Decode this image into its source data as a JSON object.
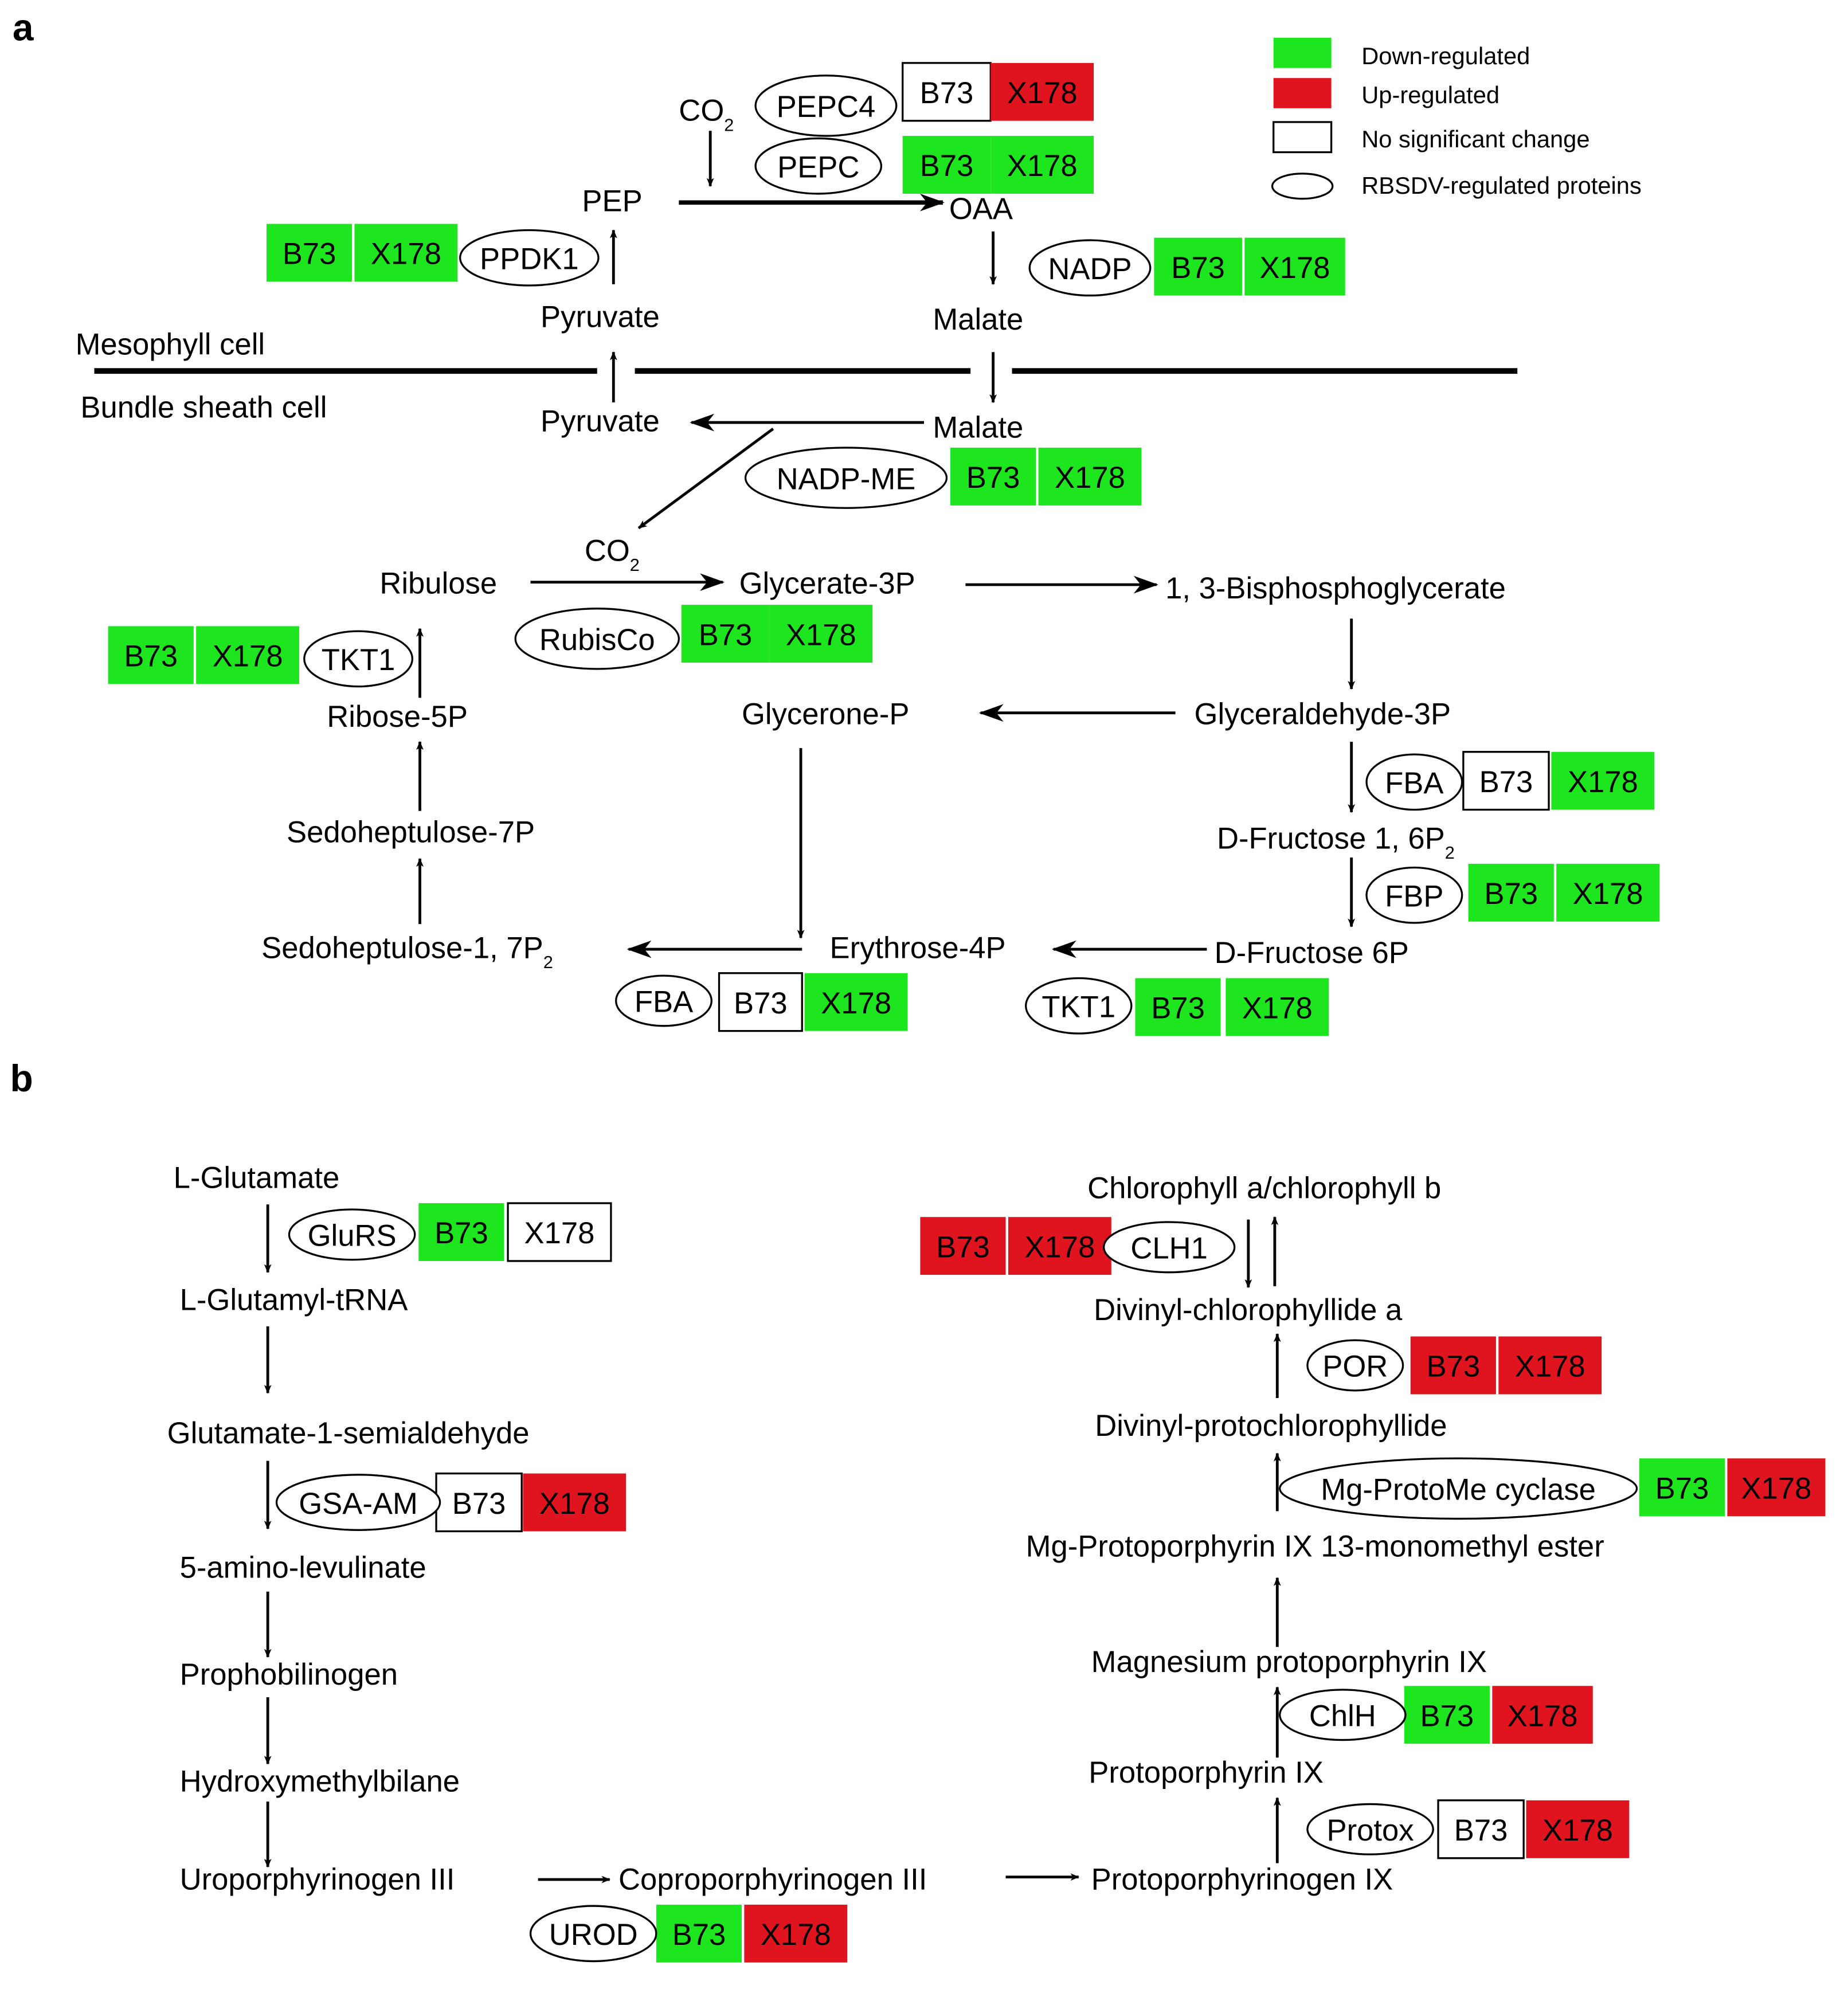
{
  "panels": {
    "a": "a",
    "b": "b"
  },
  "colors": {
    "down": "#1ee61e",
    "up": "#e0141e",
    "none": "#ffffff"
  },
  "legend": [
    {
      "status": "down",
      "label": "Down-regulated"
    },
    {
      "status": "up",
      "label": "Up-regulated"
    },
    {
      "status": "none",
      "label": "No significant change"
    },
    {
      "status": "ellipse",
      "label": "RBSDV-regulated proteins"
    }
  ],
  "compartments": {
    "mesophyll": "Mesophyll cell",
    "bundle_sheath": "Bundle sheath cell"
  },
  "metabolites_a": {
    "co2_top": {
      "text": "CO",
      "sub": "2"
    },
    "pep": "PEP",
    "oaa": "OAA",
    "pyruvate_m": "Pyruvate",
    "malate_m": "Malate",
    "pyruvate_b": "Pyruvate",
    "malate_b": "Malate",
    "co2_b": {
      "text": "CO",
      "sub": "2"
    },
    "ribulose": "Ribulose",
    "glycerate3p": "Glycerate-3P",
    "bpg": "1, 3-Bisphosphoglycerate",
    "ribose5p": "Ribose-5P",
    "glycerone": "Glycerone-P",
    "gap": "Glyceraldehyde-3P",
    "sedo7p": "Sedoheptulose-7P",
    "fbp": {
      "text": "D-Fructose 1, 6P",
      "sub": "2"
    },
    "sedo17": {
      "text": "Sedoheptulose-1, 7P",
      "sub": "2"
    },
    "e4p": "Erythrose-4P",
    "f6p": "D-Fructose 6P"
  },
  "metabolites_b": {
    "glu": "L-Glutamate",
    "glutrna": "L-Glutamyl-tRNA",
    "gsa": "Glutamate-1-semialdehyde",
    "ala": "5-amino-levulinate",
    "pbg": "Prophobilinogen",
    "hmb": "Hydroxymethylbilane",
    "uro": "Uroporphyrinogen III",
    "copro": "Coproporphyrinogen III",
    "protogen": "Protoporphyrinogen IX",
    "chl": "Chlorophyll a/chlorophyll b",
    "dvchlide": "Divinyl-chlorophyllide a",
    "dvpchlide": "Divinyl-protochlorophyllide",
    "mgprotome": "Mg-Protoporphyrin IX 13-monomethyl ester",
    "mgproto": "Magnesium protoporphyrin IX",
    "proto": "Protoporphyrin IX"
  },
  "enzymes": [
    {
      "name": "PEPC4",
      "b73": "none",
      "x178": "up"
    },
    {
      "name": "PEPC",
      "b73": "down",
      "x178": "down"
    },
    {
      "name": "PPDK1",
      "b73": "down",
      "x178": "down"
    },
    {
      "name": "NADP",
      "b73": "down",
      "x178": "down"
    },
    {
      "name": "NADP-ME",
      "b73": "down",
      "x178": "down"
    },
    {
      "name": "RubisCo",
      "b73": "down",
      "x178": "down"
    },
    {
      "name": "TKT1",
      "b73": "down",
      "x178": "down"
    },
    {
      "name": "FBA",
      "b73": "none",
      "x178": "down"
    },
    {
      "name": "FBP",
      "b73": "down",
      "x178": "down"
    },
    {
      "name": "FBA",
      "b73": "none",
      "x178": "down"
    },
    {
      "name": "TKT1",
      "b73": "down",
      "x178": "down"
    },
    {
      "name": "GluRS",
      "b73": "down",
      "x178": "none"
    },
    {
      "name": "GSA-AM",
      "b73": "none",
      "x178": "up"
    },
    {
      "name": "UROD",
      "b73": "down",
      "x178": "up"
    },
    {
      "name": "CLH1",
      "b73": "up",
      "x178": "up"
    },
    {
      "name": "POR",
      "b73": "up",
      "x178": "up"
    },
    {
      "name": "Mg-ProtoMe cyclase",
      "b73": "down",
      "x178": "up"
    },
    {
      "name": "ChlH",
      "b73": "down",
      "x178": "up"
    },
    {
      "name": "Protox",
      "b73": "none",
      "x178": "up"
    }
  ],
  "genotypes": {
    "b73": "B73",
    "x178": "X178"
  }
}
